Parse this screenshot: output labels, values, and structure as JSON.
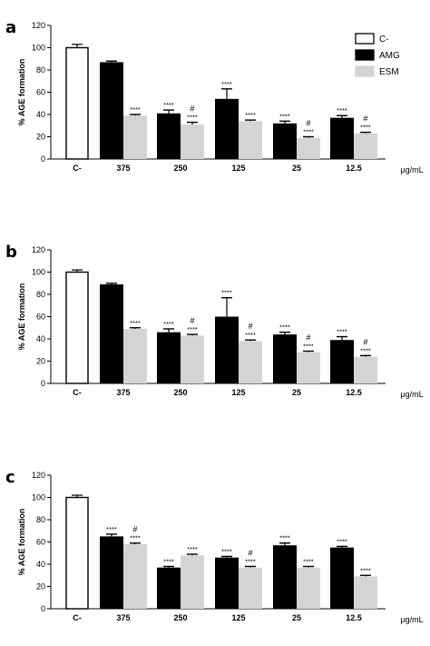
{
  "units_label": "μg/mL",
  "legend": [
    {
      "name": "C-",
      "color": "#ffffff"
    },
    {
      "name": "AMG",
      "color": "#000000"
    },
    {
      "name": "ESM",
      "color": "#d4d4d4"
    }
  ],
  "chart_data": [
    {
      "panel": "a",
      "type": "bar",
      "ylabel": "% AGE formation",
      "ylim": [
        0,
        120
      ],
      "yticks": [
        0,
        20,
        40,
        60,
        80,
        100,
        120
      ],
      "control": {
        "label": "C-",
        "value": 100,
        "err": 3
      },
      "categories": [
        "375",
        "250",
        "125",
        "25",
        "12.5"
      ],
      "series": [
        {
          "name": "AMG",
          "values": [
            87,
            41,
            54,
            32,
            37
          ],
          "errors": [
            1,
            3,
            9,
            2,
            2
          ],
          "sig": [
            "",
            "****",
            "****",
            "****",
            "****"
          ],
          "hash": [
            "",
            "",
            "",
            "",
            ""
          ]
        },
        {
          "name": "ESM",
          "values": [
            39,
            31,
            34,
            19,
            23
          ],
          "errors": [
            1,
            2,
            1,
            1,
            1
          ],
          "sig": [
            "****",
            "****",
            "****",
            "****",
            "****"
          ],
          "hash": [
            "",
            "#",
            "",
            "#",
            "#"
          ]
        }
      ]
    },
    {
      "panel": "b",
      "type": "bar",
      "ylabel": "% AGE formation",
      "ylim": [
        0,
        120
      ],
      "yticks": [
        0,
        20,
        40,
        60,
        80,
        100,
        120
      ],
      "control": {
        "label": "C-",
        "value": 100,
        "err": 2
      },
      "categories": [
        "375",
        "250",
        "125",
        "25",
        "12.5"
      ],
      "series": [
        {
          "name": "AMG",
          "values": [
            89,
            46,
            60,
            44,
            39
          ],
          "errors": [
            1,
            3,
            17,
            2,
            3
          ],
          "sig": [
            "",
            "****",
            "****",
            "****",
            "****"
          ],
          "hash": [
            "",
            "",
            "",
            "",
            ""
          ]
        },
        {
          "name": "ESM",
          "values": [
            49,
            43,
            38,
            28,
            24
          ],
          "errors": [
            1,
            1,
            1,
            1,
            1
          ],
          "sig": [
            "****",
            "****",
            "****",
            "****",
            "****"
          ],
          "hash": [
            "",
            "#",
            "#",
            "#",
            "#"
          ]
        }
      ]
    },
    {
      "panel": "c",
      "type": "bar",
      "ylabel": "% AGE formation",
      "ylim": [
        0,
        120
      ],
      "yticks": [
        0,
        20,
        40,
        60,
        80,
        100,
        120
      ],
      "control": {
        "label": "C-",
        "value": 100,
        "err": 2
      },
      "categories": [
        "375",
        "250",
        "125",
        "25",
        "12.5"
      ],
      "series": [
        {
          "name": "AMG",
          "values": [
            65,
            37,
            46,
            57,
            55
          ],
          "errors": [
            2,
            1,
            1,
            2,
            1
          ],
          "sig": [
            "****",
            "****",
            "****",
            "****",
            "****"
          ],
          "hash": [
            "",
            "",
            "",
            "",
            ""
          ]
        },
        {
          "name": "ESM",
          "values": [
            58,
            48,
            37,
            37,
            29
          ],
          "errors": [
            1,
            1,
            1,
            1,
            1
          ],
          "sig": [
            "****",
            "****",
            "****",
            "****",
            "****"
          ],
          "hash": [
            "#",
            "",
            "#",
            "",
            ""
          ]
        }
      ]
    }
  ]
}
